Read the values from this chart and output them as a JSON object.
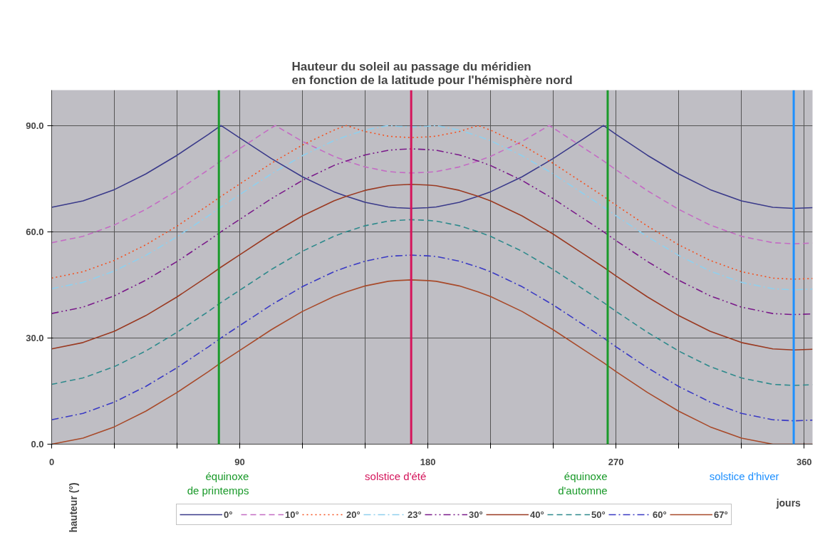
{
  "chart_data": {
    "type": "line",
    "title": "Hauteur du soleil au passage du méridien\nen fonction de la latitude pour l'hémisphère nord",
    "xlabel": "jours",
    "ylabel": "hauteur (°)",
    "x": [
      0,
      15,
      30,
      45,
      60,
      75,
      81,
      90,
      105,
      107,
      120,
      135,
      141,
      150,
      161,
      165,
      172,
      180,
      184,
      195,
      204,
      210,
      225,
      238,
      240,
      255,
      264,
      270,
      285,
      300,
      315,
      330,
      345,
      355,
      364
    ],
    "xlim": [
      0,
      364
    ],
    "xticks": [
      0,
      {
        "value": 30,
        "label": null
      },
      {
        "value": 60,
        "label": null
      },
      90,
      {
        "value": 120,
        "label": null
      },
      {
        "value": 150,
        "label": null
      },
      180,
      {
        "value": 210,
        "label": null
      },
      {
        "value": 240,
        "label": null
      },
      270,
      {
        "value": 300,
        "label": null
      },
      {
        "value": 330,
        "label": null
      },
      360
    ],
    "ylim": [
      0,
      100
    ],
    "yticks": [
      {
        "value": 0,
        "label": "0.0"
      },
      {
        "value": 30,
        "label": "30.0"
      },
      {
        "value": 60,
        "label": "60.0"
      },
      {
        "value": 90,
        "label": "90.0"
      }
    ],
    "grid": true,
    "legend": "bottom",
    "marker": "none",
    "series": [
      {
        "name": "0°",
        "color": "#3a3a8a",
        "line_style": "solid",
        "values": [
          66.9,
          68.7,
          71.9,
          76.3,
          81.6,
          87.5,
          90,
          86.5,
          80.7,
          80,
          75.5,
          71.3,
          70,
          68.3,
          67,
          66.8,
          66.6,
          66.8,
          67,
          68.3,
          70,
          71.3,
          75.5,
          80,
          80.7,
          86.5,
          90,
          87.5,
          81.6,
          76.3,
          71.9,
          68.7,
          66.9,
          66.6,
          66.8
        ]
      },
      {
        "name": "10°",
        "color": "#c46cc4",
        "line_style": "dashed",
        "values": [
          56.9,
          58.7,
          61.9,
          66.3,
          71.6,
          77.5,
          80,
          83.5,
          89.3,
          90,
          85.5,
          81.3,
          80,
          78.3,
          77,
          76.8,
          76.6,
          76.8,
          77,
          78.3,
          80,
          81.3,
          85.5,
          90,
          89.3,
          83.5,
          80,
          77.5,
          71.6,
          66.3,
          61.9,
          58.7,
          56.9,
          56.6,
          56.8
        ]
      },
      {
        "name": "20°",
        "color": "#f5501e",
        "line_style": "dotted",
        "values": [
          46.9,
          48.7,
          51.9,
          56.3,
          61.6,
          67.5,
          70,
          73.5,
          79.3,
          80,
          84.5,
          88.7,
          90,
          88.3,
          87,
          86.8,
          86.6,
          86.8,
          87,
          88.3,
          90,
          88.7,
          84.5,
          80,
          79.3,
          73.5,
          70,
          67.5,
          61.6,
          56.3,
          51.9,
          48.7,
          46.9,
          46.6,
          46.8
        ]
      },
      {
        "name": "23°",
        "color": "#8fd0ee",
        "line_style": "dashdot",
        "values": [
          43.9,
          45.7,
          48.9,
          53.3,
          58.6,
          64.5,
          67,
          70.5,
          76.3,
          77,
          81.5,
          85.7,
          87,
          88.7,
          90,
          89.8,
          89.6,
          89.8,
          90,
          88.7,
          87,
          85.7,
          81.5,
          77,
          76.3,
          70.5,
          67,
          64.5,
          58.6,
          53.3,
          48.9,
          45.7,
          43.9,
          43.6,
          43.8
        ]
      },
      {
        "name": "30°",
        "color": "#7a1a8a",
        "line_style": "dashdotdot",
        "values": [
          36.9,
          38.7,
          41.9,
          46.3,
          51.6,
          57.5,
          60,
          63.5,
          69.3,
          70,
          74.5,
          78.7,
          80,
          81.7,
          83,
          83.2,
          83.4,
          83.2,
          83,
          81.7,
          80,
          78.7,
          74.5,
          70,
          69.3,
          63.5,
          60,
          57.5,
          51.6,
          46.3,
          41.9,
          38.7,
          36.9,
          36.6,
          36.8
        ]
      },
      {
        "name": "40°",
        "color": "#9a3a22",
        "line_style": "solid",
        "values": [
          26.9,
          28.7,
          31.9,
          36.3,
          41.6,
          47.5,
          50,
          53.5,
          59.3,
          60,
          64.5,
          68.7,
          70,
          71.7,
          73,
          73.2,
          73.4,
          73.2,
          73,
          71.7,
          70,
          68.7,
          64.5,
          60,
          59.3,
          53.5,
          50,
          47.5,
          41.6,
          36.3,
          31.9,
          28.7,
          26.9,
          26.6,
          26.8
        ]
      },
      {
        "name": "50°",
        "color": "#2e8a8c",
        "line_style": "dashed",
        "values": [
          16.9,
          18.7,
          21.9,
          26.3,
          31.6,
          37.5,
          40,
          43.5,
          49.3,
          50,
          54.5,
          58.7,
          60,
          61.7,
          63,
          63.2,
          63.4,
          63.2,
          63,
          61.7,
          60,
          58.7,
          54.5,
          50,
          49.3,
          43.5,
          40,
          37.5,
          31.6,
          26.3,
          21.9,
          18.7,
          16.9,
          16.6,
          16.8
        ]
      },
      {
        "name": "60°",
        "color": "#3a3ac4",
        "line_style": "dashdot",
        "values": [
          6.9,
          8.7,
          11.9,
          16.3,
          21.6,
          27.5,
          30,
          33.5,
          39.3,
          40,
          44.5,
          48.7,
          50,
          51.7,
          53,
          53.2,
          53.4,
          53.2,
          53,
          51.7,
          50,
          48.7,
          44.5,
          40,
          39.3,
          33.5,
          30,
          27.5,
          21.6,
          16.3,
          11.9,
          8.7,
          6.9,
          6.6,
          6.8
        ]
      },
      {
        "name": "67°",
        "color": "#a84a2a",
        "line_style": "solid",
        "values": [
          0,
          1.7,
          4.9,
          9.3,
          14.6,
          20.5,
          23,
          26.5,
          32.3,
          33,
          37.5,
          41.7,
          43,
          44.7,
          46,
          46.2,
          46.4,
          46.2,
          46,
          44.7,
          43,
          41.7,
          37.5,
          33,
          32.3,
          26.5,
          23,
          20.5,
          14.6,
          9.3,
          4.9,
          1.7,
          0,
          0,
          0
        ]
      }
    ],
    "ref_lines": [
      {
        "axis": "x",
        "value": 80,
        "label": "équinoxe\nde printemps",
        "color": "#1a9a2a"
      },
      {
        "axis": "x",
        "value": 172,
        "label": "solstice d'été",
        "color": "#d4145a"
      },
      {
        "axis": "x",
        "value": 266,
        "label": "équinoxe\nd'automne",
        "color": "#1a9a2a"
      },
      {
        "axis": "x",
        "value": 355,
        "label": "solstice d'hiver",
        "color": "#1e90ff"
      }
    ]
  }
}
